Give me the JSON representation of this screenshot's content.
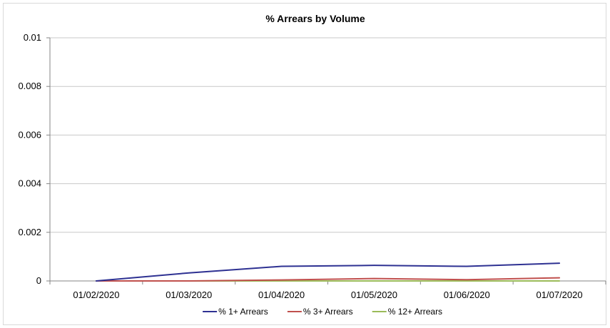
{
  "chart_data": {
    "type": "line",
    "title": "% Arrears by Volume",
    "xlabel": "",
    "ylabel": "",
    "categories": [
      "01/02/2020",
      "01/03/2020",
      "01/04/2020",
      "01/05/2020",
      "01/06/2020",
      "01/07/2020"
    ],
    "y_ticks": [
      "0",
      "0.002",
      "0.004",
      "0.006",
      "0.008",
      "0.01"
    ],
    "ylim": [
      0,
      0.01
    ],
    "grid": true,
    "legend_position": "bottom",
    "series": [
      {
        "name": "% 1+ Arrears",
        "color": "#2e3192",
        "values": [
          0.0,
          0.00033,
          0.0006,
          0.00064,
          0.0006,
          0.00073
        ]
      },
      {
        "name": "% 3+ Arrears",
        "color": "#c0504d",
        "values": [
          0.0,
          0.0,
          4e-05,
          0.0001,
          5e-05,
          0.00013
        ]
      },
      {
        "name": "% 12+ Arrears",
        "color": "#9bbb59",
        "values": [
          0.0,
          0.0,
          0.0,
          0.0,
          0.0,
          0.0
        ]
      }
    ]
  }
}
